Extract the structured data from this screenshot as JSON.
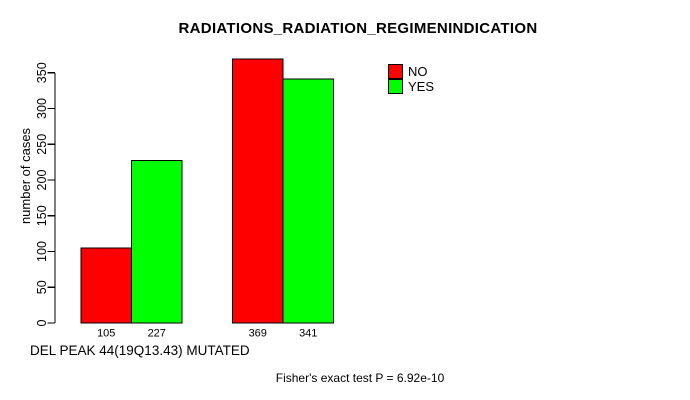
{
  "chart_data": {
    "type": "bar",
    "title": "RADIATIONS_RADIATION_REGIMENINDICATION",
    "ylabel": "number of cases",
    "xlabel": "DEL PEAK 44(19Q13.43) MUTATED",
    "footnote": "Fisher's exact test P = 6.92e-10",
    "categories": [
      "",
      ""
    ],
    "series": [
      {
        "name": "NO",
        "color": "#ff0000",
        "values": [
          105,
          369
        ]
      },
      {
        "name": "YES",
        "color": "#00ff00",
        "values": [
          227,
          341
        ]
      }
    ],
    "bar_labels": [
      "105",
      "227",
      "369",
      "341"
    ],
    "yticks": [
      0,
      50,
      100,
      150,
      200,
      250,
      300,
      350
    ],
    "ylim": [
      0,
      370
    ],
    "grid": false,
    "legend_position": "top-right",
    "axis_color": "#000000",
    "text_color": "#000000",
    "background": "#ffffff"
  }
}
